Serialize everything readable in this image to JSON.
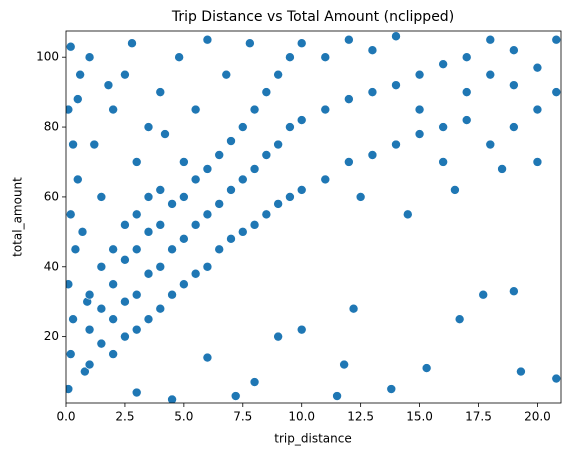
{
  "chart_data": {
    "type": "scatter",
    "title": "Trip Distance vs Total Amount (nclipped)",
    "x_label": "trip_distance",
    "y_label": "total_amount",
    "color": "#1f77b4",
    "xlim": [
      0,
      21
    ],
    "ylim": [
      1,
      107.5
    ],
    "xticks": [
      {
        "value": 0,
        "label": "0.0"
      },
      {
        "value": 2.5,
        "label": "2.5"
      },
      {
        "value": 5,
        "label": "5.0"
      },
      {
        "value": 7.5,
        "label": "7.5"
      },
      {
        "value": 10,
        "label": "10.0"
      },
      {
        "value": 12.5,
        "label": "12.5"
      },
      {
        "value": 15,
        "label": "15.0"
      },
      {
        "value": 17.5,
        "label": "17.5"
      },
      {
        "value": 20,
        "label": "20.0"
      }
    ],
    "yticks": [
      20,
      40,
      60,
      80,
      100
    ],
    "x": [
      0.1,
      0.2,
      0.3,
      0.1,
      0.4,
      0.2,
      0.5,
      0.3,
      0.1,
      0.6,
      0.2,
      0.8,
      0.9,
      0.7,
      0.5,
      1,
      1,
      1,
      1.5,
      1.5,
      1.5,
      2,
      2,
      2,
      2,
      2.5,
      2.5,
      2.5,
      2.5,
      3,
      3,
      3,
      3,
      3.5,
      3.5,
      3.5,
      3.5,
      4,
      4,
      4,
      4,
      4.5,
      4.5,
      4.5,
      5,
      5,
      5,
      5,
      5.5,
      5.5,
      5.5,
      6,
      6,
      6,
      6.5,
      6.5,
      6.5,
      7,
      7,
      7,
      7.5,
      7.5,
      7.5,
      8,
      8,
      8,
      8.5,
      8.5,
      8.5,
      9,
      9,
      9,
      9.5,
      9.5,
      9.5,
      10,
      10,
      10,
      11,
      11,
      11,
      12,
      12,
      12,
      13,
      13,
      13,
      14,
      14,
      14,
      15,
      15,
      15,
      16,
      16,
      16,
      17,
      17,
      17,
      18,
      18,
      18,
      19,
      19,
      19,
      20,
      20,
      20,
      20.8,
      20.8,
      12.5,
      14.5,
      16.5,
      18.5,
      9,
      10,
      11.5,
      13.8,
      15.3,
      16.7,
      17.7,
      19,
      19.3,
      20.8,
      8,
      7.2,
      6,
      4.5,
      3,
      11.8,
      12.2,
      1.5,
      1.2,
      2,
      2.5,
      3,
      3.5,
      4,
      4.8,
      5.5,
      6,
      1,
      2.8,
      4.2,
      1.8,
      7.8,
      6.8
    ],
    "values": [
      5,
      15,
      25,
      35,
      45,
      55,
      65,
      75,
      85,
      95,
      103,
      10,
      30,
      50,
      88,
      12,
      22,
      32,
      18,
      28,
      40,
      15,
      25,
      35,
      45,
      20,
      30,
      42,
      52,
      22,
      32,
      45,
      55,
      25,
      38,
      50,
      60,
      28,
      40,
      52,
      62,
      32,
      45,
      58,
      35,
      48,
      60,
      70,
      38,
      52,
      65,
      40,
      55,
      68,
      45,
      58,
      72,
      48,
      62,
      76,
      50,
      65,
      80,
      52,
      68,
      85,
      55,
      72,
      90,
      58,
      75,
      95,
      60,
      80,
      100,
      62,
      82,
      104,
      65,
      85,
      100,
      70,
      88,
      105,
      72,
      90,
      102,
      75,
      92,
      106,
      78,
      95,
      85,
      80,
      98,
      70,
      82,
      100,
      90,
      75,
      95,
      105,
      80,
      92,
      102,
      85,
      97,
      70,
      90,
      105,
      60,
      55,
      62,
      68,
      20,
      22,
      3,
      5,
      11,
      25,
      32,
      33,
      10,
      8,
      7,
      3,
      14,
      2,
      4,
      12,
      28,
      60,
      75,
      85,
      95,
      70,
      80,
      90,
      100,
      85,
      105,
      100,
      104,
      78,
      92,
      104,
      95
    ]
  }
}
